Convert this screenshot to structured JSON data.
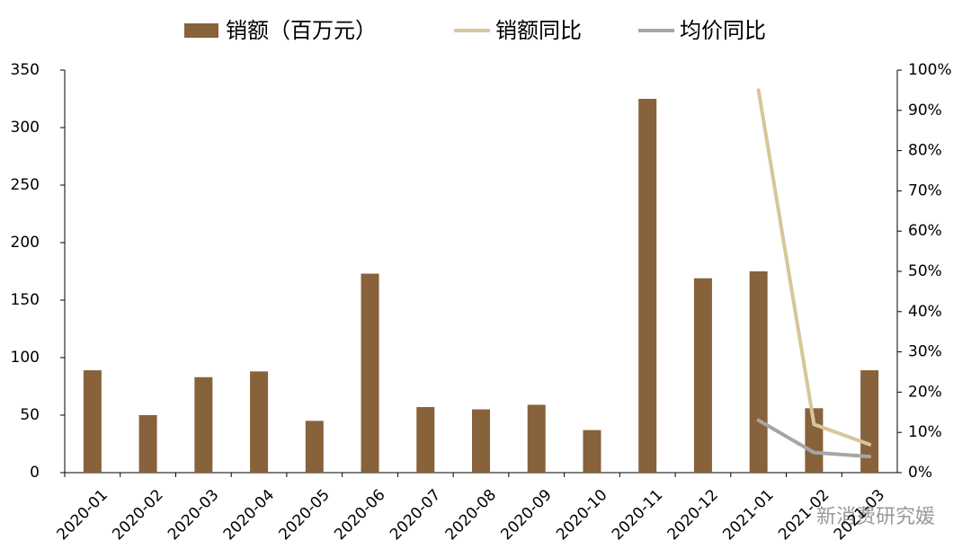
{
  "chart_data": {
    "type": "combo",
    "categories": [
      "2020-01",
      "2020-02",
      "2020-03",
      "2020-04",
      "2020-05",
      "2020-06",
      "2020-07",
      "2020-08",
      "2020-09",
      "2020-10",
      "2020-11",
      "2020-12",
      "2021-01",
      "2021-02",
      "2021-03"
    ],
    "series": [
      {
        "name": "销额（百万元）",
        "type": "bar",
        "color": "#87623a",
        "values": [
          89,
          50,
          83,
          88,
          45,
          173,
          57,
          55,
          59,
          37,
          325,
          169,
          175,
          56,
          89
        ]
      },
      {
        "name": "销额同比",
        "type": "line",
        "axis": "y2",
        "color": "#d9c59b",
        "values": [
          null,
          null,
          null,
          null,
          null,
          null,
          null,
          null,
          null,
          null,
          null,
          null,
          95,
          12,
          7
        ]
      },
      {
        "name": "均价同比",
        "type": "line",
        "axis": "y2",
        "color": "#a6a6a6",
        "values": [
          null,
          null,
          null,
          null,
          null,
          null,
          null,
          null,
          null,
          null,
          null,
          null,
          13,
          5,
          4
        ]
      }
    ],
    "ylim": [
      0,
      350
    ],
    "yticks": [
      0,
      50,
      100,
      150,
      200,
      250,
      300,
      350
    ],
    "y2lim": [
      0,
      100
    ],
    "y2ticks": [
      {
        "value": 0,
        "label": "0%"
      },
      {
        "value": 10,
        "label": "10%"
      },
      {
        "value": 20,
        "label": "20%"
      },
      {
        "value": 30,
        "label": "30%"
      },
      {
        "value": 40,
        "label": "40%"
      },
      {
        "value": 50,
        "label": "50%"
      },
      {
        "value": 60,
        "label": "60%"
      },
      {
        "value": 70,
        "label": "70%"
      },
      {
        "value": 80,
        "label": "80%"
      },
      {
        "value": 90,
        "label": "90%"
      },
      {
        "value": 100,
        "label": "100%"
      }
    ],
    "grid": false,
    "watermark": "新消费研究媛"
  }
}
